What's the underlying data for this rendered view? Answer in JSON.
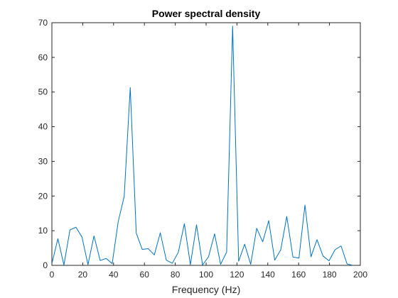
{
  "chart_data": {
    "type": "line",
    "title": "Power spectral density",
    "xlabel": "Frequency (Hz)",
    "ylabel": "",
    "xlim": [
      0,
      200
    ],
    "ylim": [
      0,
      70
    ],
    "xticks": [
      0,
      20,
      40,
      60,
      80,
      100,
      120,
      140,
      160,
      180,
      200
    ],
    "yticks": [
      0,
      10,
      20,
      30,
      40,
      50,
      60,
      70
    ],
    "grid": false,
    "color": "#0072BD",
    "series": [
      {
        "x": [
          0,
          3.9,
          7.8,
          11.7,
          15.6,
          19.5,
          23.4,
          27.3,
          31.3,
          35.2,
          39.1,
          43,
          46.9,
          50.8,
          54.7,
          58.6,
          62.5,
          66.4,
          70.3,
          74.2,
          78.1,
          82,
          85.9,
          89.8,
          93.8,
          97.7,
          101.6,
          105.5,
          109.4,
          113.3,
          117.2,
          121.1,
          125,
          128.9,
          132.8,
          136.7,
          140.6,
          144.5,
          148.4,
          152.3,
          156.3,
          160.2,
          164.1,
          168,
          171.9,
          175.8,
          179.7,
          183.6,
          187.5,
          191.4,
          195.3
        ],
        "values": [
          0.5,
          7.7,
          0.1,
          10.2,
          11.0,
          8.2,
          0.2,
          8.5,
          1.4,
          2.0,
          0.5,
          12.6,
          19.9,
          51.3,
          9.3,
          4.6,
          4.8,
          3.0,
          9.4,
          1.5,
          0.6,
          3.8,
          12.0,
          0.2,
          11.7,
          0.1,
          2.5,
          9.1,
          0.3,
          3.8,
          69.0,
          1.2,
          6.1,
          0.3,
          10.7,
          6.8,
          12.9,
          1.5,
          4.5,
          14.1,
          2.4,
          2.1,
          17.4,
          2.5,
          7.4,
          2.7,
          1.3,
          4.5,
          5.6,
          0.4,
          0.0
        ]
      }
    ]
  }
}
